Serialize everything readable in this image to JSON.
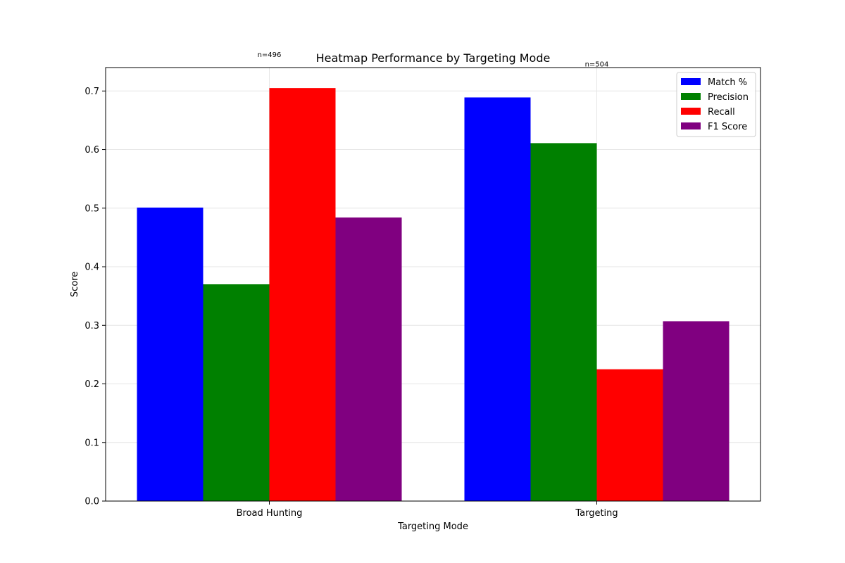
{
  "chart_data": {
    "type": "bar",
    "title": "Heatmap Performance by Targeting Mode",
    "xlabel": "Targeting Mode",
    "ylabel": "Score",
    "categories": [
      "Broad Hunting",
      "Targeting"
    ],
    "series": [
      {
        "name": "Match %",
        "color": "#0000ff",
        "values": [
          0.501,
          0.689
        ]
      },
      {
        "name": "Precision",
        "color": "#008000",
        "values": [
          0.37,
          0.611
        ]
      },
      {
        "name": "Recall",
        "color": "#ff0000",
        "values": [
          0.705,
          0.225
        ]
      },
      {
        "name": "F1 Score",
        "color": "#800080",
        "values": [
          0.484,
          0.307
        ]
      }
    ],
    "annotations": [
      "n=496",
      "n=504"
    ],
    "ylim": [
      0,
      0.74
    ],
    "yticks": [
      "0.0",
      "0.1",
      "0.2",
      "0.3",
      "0.4",
      "0.5",
      "0.6",
      "0.7"
    ],
    "grid": true,
    "legend_position": "top-right"
  }
}
